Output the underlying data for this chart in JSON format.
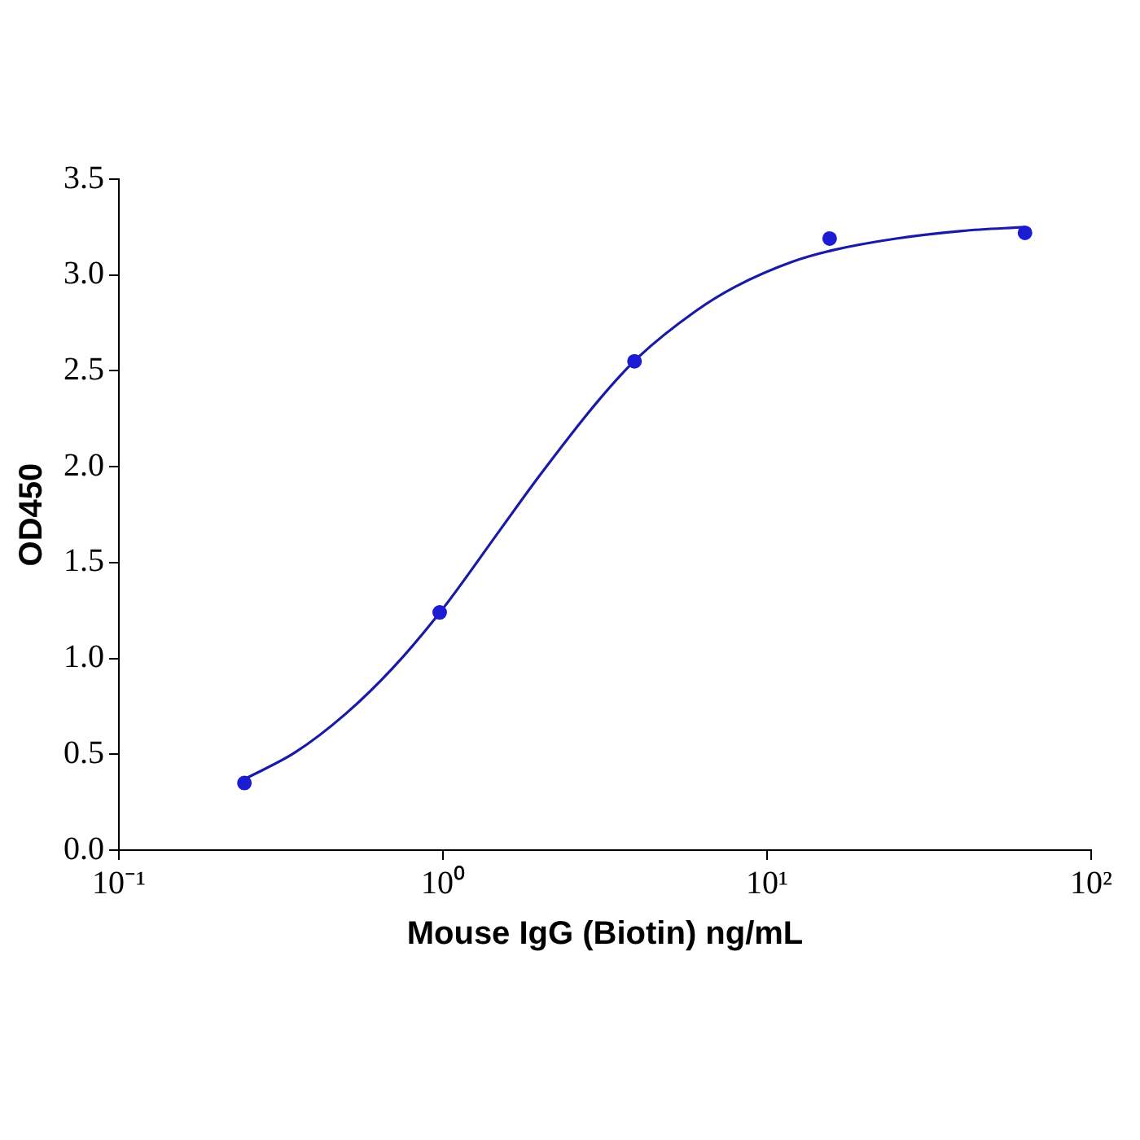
{
  "chart_data": {
    "type": "scatter",
    "xlabel": "Mouse IgG (Biotin) ng/mL",
    "ylabel": "OD450",
    "log": "x",
    "grid": false,
    "marker": "circle",
    "xlim": [
      0.1,
      100
    ],
    "xticks": [
      {
        "value": 0.1,
        "label": "10⁻¹"
      },
      {
        "value": 1,
        "label": "10⁰"
      },
      {
        "value": 10,
        "label": "10¹"
      },
      {
        "value": 100,
        "label": "10²"
      }
    ],
    "ylim": [
      0,
      3.5
    ],
    "yticks": [
      {
        "value": 0,
        "label": "0.0"
      },
      {
        "value": 0.5,
        "label": "0.5"
      },
      {
        "value": 1,
        "label": "1.0"
      },
      {
        "value": 1.5,
        "label": "1.5"
      },
      {
        "value": 2,
        "label": "2.0"
      },
      {
        "value": 2.5,
        "label": "2.5"
      },
      {
        "value": 3,
        "label": "3.0"
      },
      {
        "value": 3.5,
        "label": "3.5"
      }
    ],
    "series": [
      {
        "color": "#1c1cd4",
        "x": [
          0.244,
          0.977,
          3.9,
          15.6,
          62.5
        ],
        "values": [
          0.35,
          1.24,
          2.55,
          3.19,
          3.22
        ]
      },
      {
        "type": "line",
        "color": "#1a1aa8",
        "marker": "none",
        "x": [
          0.244,
          0.35,
          0.5,
          0.7,
          1,
          1.5,
          2,
          3,
          4,
          6,
          8,
          12,
          16,
          25,
          40,
          62.5
        ],
        "values": [
          0.37,
          0.51,
          0.71,
          0.95,
          1.26,
          1.67,
          1.96,
          2.34,
          2.57,
          2.81,
          2.94,
          3.07,
          3.13,
          3.19,
          3.23,
          3.25
        ]
      }
    ]
  }
}
